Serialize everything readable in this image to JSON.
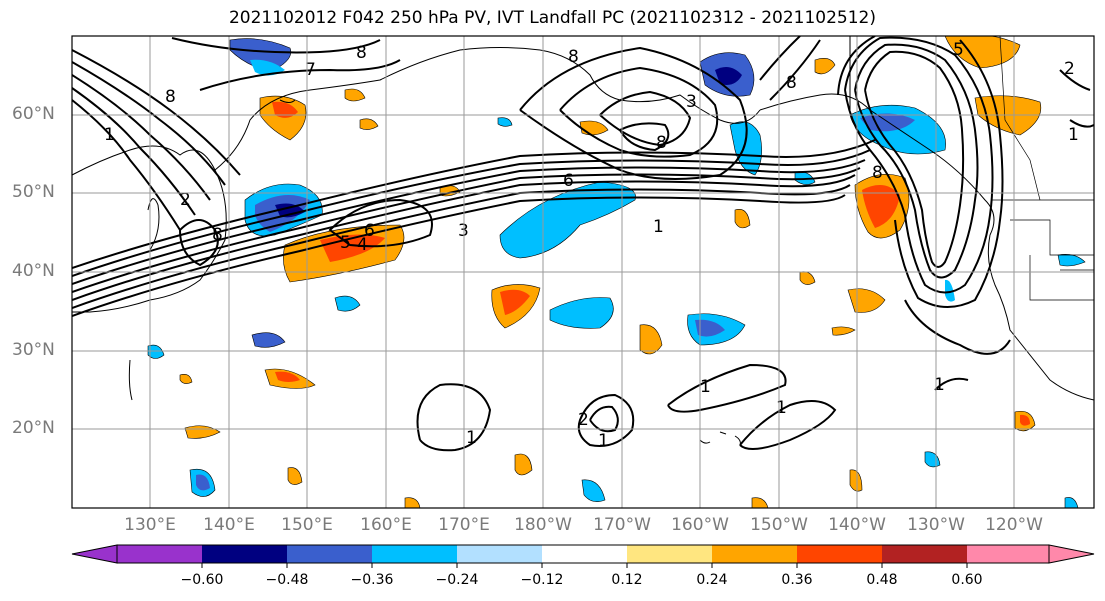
{
  "title": "2021102012 F042 250 hPa PV, IVT Landfall PC (2021102312 - 2021102512)",
  "lat_labels": [
    "60°N",
    "50°N",
    "40°N",
    "30°N",
    "20°N"
  ],
  "lon_labels": [
    "130°E",
    "140°E",
    "150°E",
    "160°E",
    "170°E",
    "180°W",
    "170°W",
    "160°W",
    "150°W",
    "140°W",
    "130°W",
    "120°W"
  ],
  "colorbar": {
    "colors": [
      "#9932cc",
      "#000080",
      "#3a5fcd",
      "#00bfff",
      "#b2e0ff",
      "#ffffff",
      "#ffffff",
      "#ffe680",
      "#ffa500",
      "#ff4500",
      "#b22222",
      "#ff88aa"
    ],
    "ticks": [
      "−0.60",
      "−0.48",
      "−0.36",
      "−0.24",
      "−0.12",
      "0.12",
      "0.24",
      "0.36",
      "0.48",
      "0.60"
    ]
  },
  "contour_labels": [
    "8",
    "7",
    "8",
    "1",
    "2",
    "8",
    "5",
    "4",
    "6",
    "3",
    "1",
    "6",
    "8",
    "3",
    "8",
    "8",
    "5",
    "8",
    "2",
    "1",
    "1",
    "1",
    "1",
    "2",
    "1",
    "1"
  ]
}
